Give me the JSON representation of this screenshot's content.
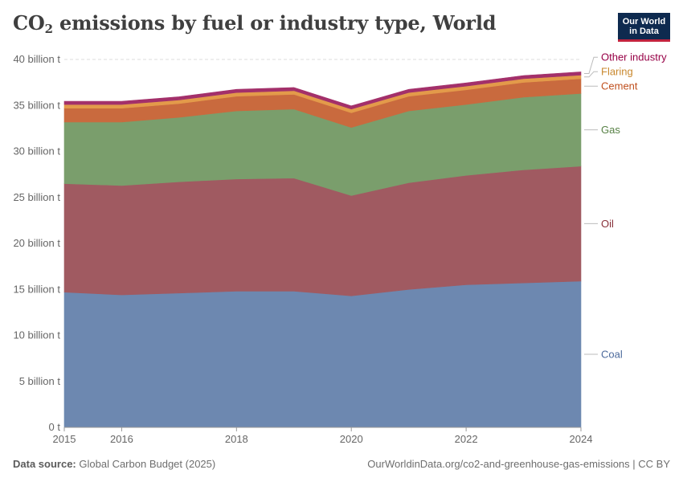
{
  "header": {
    "title_main": "CO",
    "title_sub": "2",
    "title_rest": " emissions by fuel or industry type, World",
    "logo_line1": "Our World",
    "logo_line2": "in Data"
  },
  "footer": {
    "source_label": "Data source:",
    "source_value": "Global Carbon Budget (2025)",
    "url": "OurWorldinData.org/co2-and-greenhouse-gas-emissions | CC BY"
  },
  "chart_data": {
    "type": "area",
    "stacked": true,
    "title": "CO₂ emissions by fuel or industry type, World",
    "x": [
      2015,
      2016,
      2017,
      2018,
      2019,
      2020,
      2021,
      2022,
      2023,
      2024
    ],
    "x_ticks": [
      2015,
      2016,
      2018,
      2020,
      2022,
      2024
    ],
    "ylim": [
      0,
      40
    ],
    "y_ticks": [
      0,
      5,
      10,
      15,
      20,
      25,
      30,
      35,
      40
    ],
    "y_tick_labels": [
      "0 t",
      "5 billion t",
      "10 billion t",
      "15 billion t",
      "20 billion t",
      "25 billion t",
      "30 billion t",
      "35 billion t",
      "40 billion t"
    ],
    "grid": "horizontal dashed",
    "legend": "right, inline labels",
    "series": [
      {
        "name": "Coal",
        "color": "#6d88b0",
        "label_color": "#4c6a9c",
        "values": [
          14.7,
          14.4,
          14.6,
          14.8,
          14.8,
          14.3,
          15.0,
          15.5,
          15.7,
          15.9
        ]
      },
      {
        "name": "Oil",
        "color": "#a05a61",
        "label_color": "#883039",
        "values": [
          11.8,
          11.9,
          12.1,
          12.2,
          12.3,
          10.9,
          11.6,
          11.9,
          12.3,
          12.5
        ]
      },
      {
        "name": "Gas",
        "color": "#7a9e6c",
        "label_color": "#578145",
        "values": [
          6.7,
          6.9,
          7.0,
          7.4,
          7.5,
          7.4,
          7.8,
          7.7,
          7.9,
          7.9
        ]
      },
      {
        "name": "Cement",
        "color": "#c96a3e",
        "label_color": "#c0501e",
        "values": [
          1.5,
          1.5,
          1.5,
          1.6,
          1.6,
          1.6,
          1.6,
          1.6,
          1.6,
          1.6
        ]
      },
      {
        "name": "Flaring",
        "color": "#e39a4a",
        "label_color": "#c9882e",
        "values": [
          0.4,
          0.4,
          0.4,
          0.4,
          0.4,
          0.4,
          0.4,
          0.4,
          0.4,
          0.4
        ]
      },
      {
        "name": "Other industry",
        "color": "#a3306a",
        "label_color": "#970046",
        "values": [
          0.35,
          0.35,
          0.35,
          0.35,
          0.35,
          0.35,
          0.35,
          0.35,
          0.35,
          0.35
        ]
      }
    ]
  }
}
